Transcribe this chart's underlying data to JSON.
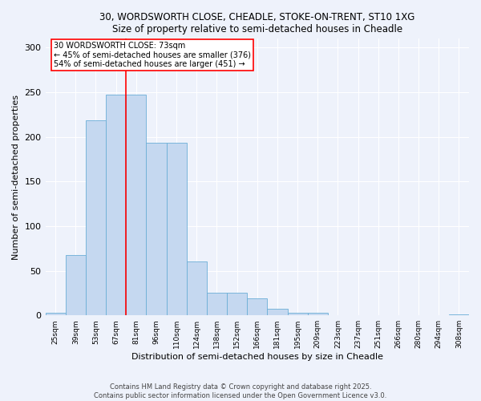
{
  "title_line1": "30, WORDSWORTH CLOSE, CHEADLE, STOKE-ON-TRENT, ST10 1XG",
  "title_line2": "Size of property relative to semi-detached houses in Cheadle",
  "xlabel": "Distribution of semi-detached houses by size in Cheadle",
  "ylabel": "Number of semi-detached properties",
  "categories": [
    "25sqm",
    "39sqm",
    "53sqm",
    "67sqm",
    "81sqm",
    "96sqm",
    "110sqm",
    "124sqm",
    "138sqm",
    "152sqm",
    "166sqm",
    "181sqm",
    "195sqm",
    "209sqm",
    "223sqm",
    "237sqm",
    "251sqm",
    "266sqm",
    "280sqm",
    "294sqm",
    "308sqm"
  ],
  "values": [
    3,
    68,
    219,
    247,
    247,
    193,
    193,
    60,
    25,
    25,
    19,
    7,
    3,
    3,
    0,
    0,
    0,
    0,
    0,
    0,
    1
  ],
  "bar_color": "#c5d8f0",
  "bar_edge_color": "#6baed6",
  "property_label": "30 WORDSWORTH CLOSE: 73sqm",
  "pct_smaller": 45,
  "count_smaller": 376,
  "pct_larger": 54,
  "count_larger": 451,
  "vline_x_idx": 3.5,
  "ylim": [
    0,
    310
  ],
  "yticks": [
    0,
    50,
    100,
    150,
    200,
    250,
    300
  ],
  "background_color": "#eef2fb",
  "grid_color": "#ffffff",
  "footer_line1": "Contains HM Land Registry data © Crown copyright and database right 2025.",
  "footer_line2": "Contains public sector information licensed under the Open Government Licence v3.0."
}
